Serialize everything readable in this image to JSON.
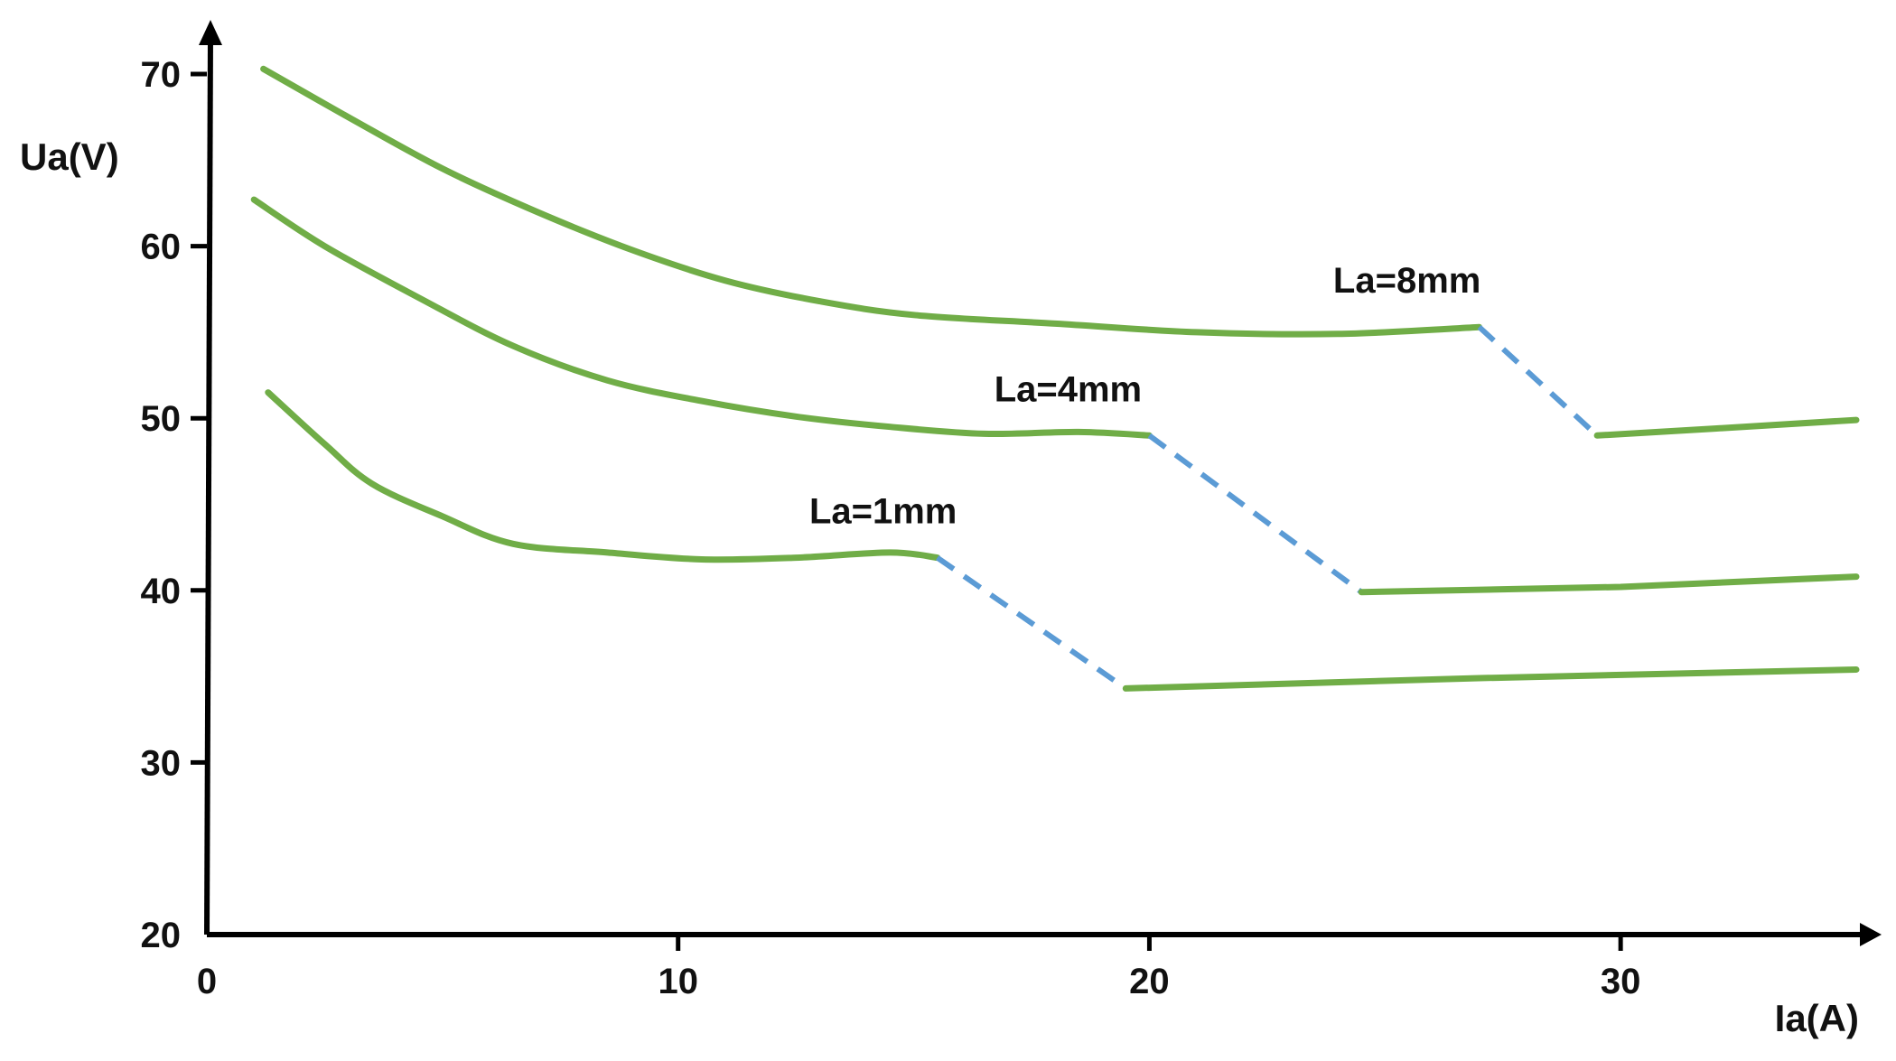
{
  "chart_data": {
    "type": "line",
    "xlabel": "Ia(A)",
    "ylabel": "Ua(V)",
    "xlim": [
      0,
      35
    ],
    "ylim": [
      20,
      70
    ],
    "xticks": [
      0,
      10,
      20,
      30
    ],
    "yticks": [
      20,
      30,
      40,
      50,
      60,
      70
    ],
    "grid": false,
    "legend": "none",
    "colors": {
      "solid": "#70ad47",
      "transition": "#5b9bd5",
      "axis": "#000000"
    },
    "series": [
      {
        "name": "La=1mm",
        "points": [
          [
            1.3,
            51.5
          ],
          [
            2.5,
            48.5
          ],
          [
            3.5,
            46.2
          ],
          [
            5.0,
            44.3
          ],
          [
            6.5,
            42.7
          ],
          [
            8.5,
            42.2
          ],
          [
            10.5,
            41.8
          ],
          [
            12.5,
            41.9
          ],
          [
            14.5,
            42.2
          ],
          [
            15.5,
            41.9
          ]
        ],
        "transition": [
          [
            15.5,
            41.9
          ],
          [
            19.5,
            34.3
          ]
        ],
        "tail": [
          [
            19.5,
            34.3
          ],
          [
            27.0,
            34.9
          ],
          [
            35.0,
            35.4
          ]
        ]
      },
      {
        "name": "La=4mm",
        "points": [
          [
            1.0,
            62.7
          ],
          [
            2.5,
            60.0
          ],
          [
            4.5,
            57.0
          ],
          [
            6.5,
            54.2
          ],
          [
            8.5,
            52.2
          ],
          [
            10.5,
            51.0
          ],
          [
            12.5,
            50.1
          ],
          [
            14.5,
            49.5
          ],
          [
            16.5,
            49.1
          ],
          [
            18.5,
            49.2
          ],
          [
            20.0,
            49.0
          ]
        ],
        "transition": [
          [
            20.0,
            49.0
          ],
          [
            24.5,
            39.9
          ]
        ],
        "tail": [
          [
            24.5,
            39.9
          ],
          [
            30.0,
            40.2
          ],
          [
            35.0,
            40.8
          ]
        ]
      },
      {
        "name": "La=8mm",
        "points": [
          [
            1.2,
            70.3
          ],
          [
            3.0,
            67.5
          ],
          [
            5.0,
            64.5
          ],
          [
            7.0,
            62.0
          ],
          [
            9.0,
            59.8
          ],
          [
            11.0,
            58.0
          ],
          [
            13.0,
            56.8
          ],
          [
            15.0,
            56.0
          ],
          [
            18.0,
            55.5
          ],
          [
            21.0,
            55.0
          ],
          [
            24.0,
            54.9
          ],
          [
            27.0,
            55.3
          ]
        ],
        "transition": [
          [
            27.0,
            55.3
          ],
          [
            29.5,
            49.0
          ]
        ],
        "tail": [
          [
            29.5,
            49.0
          ],
          [
            32.0,
            49.4
          ],
          [
            35.0,
            49.9
          ]
        ]
      }
    ]
  }
}
